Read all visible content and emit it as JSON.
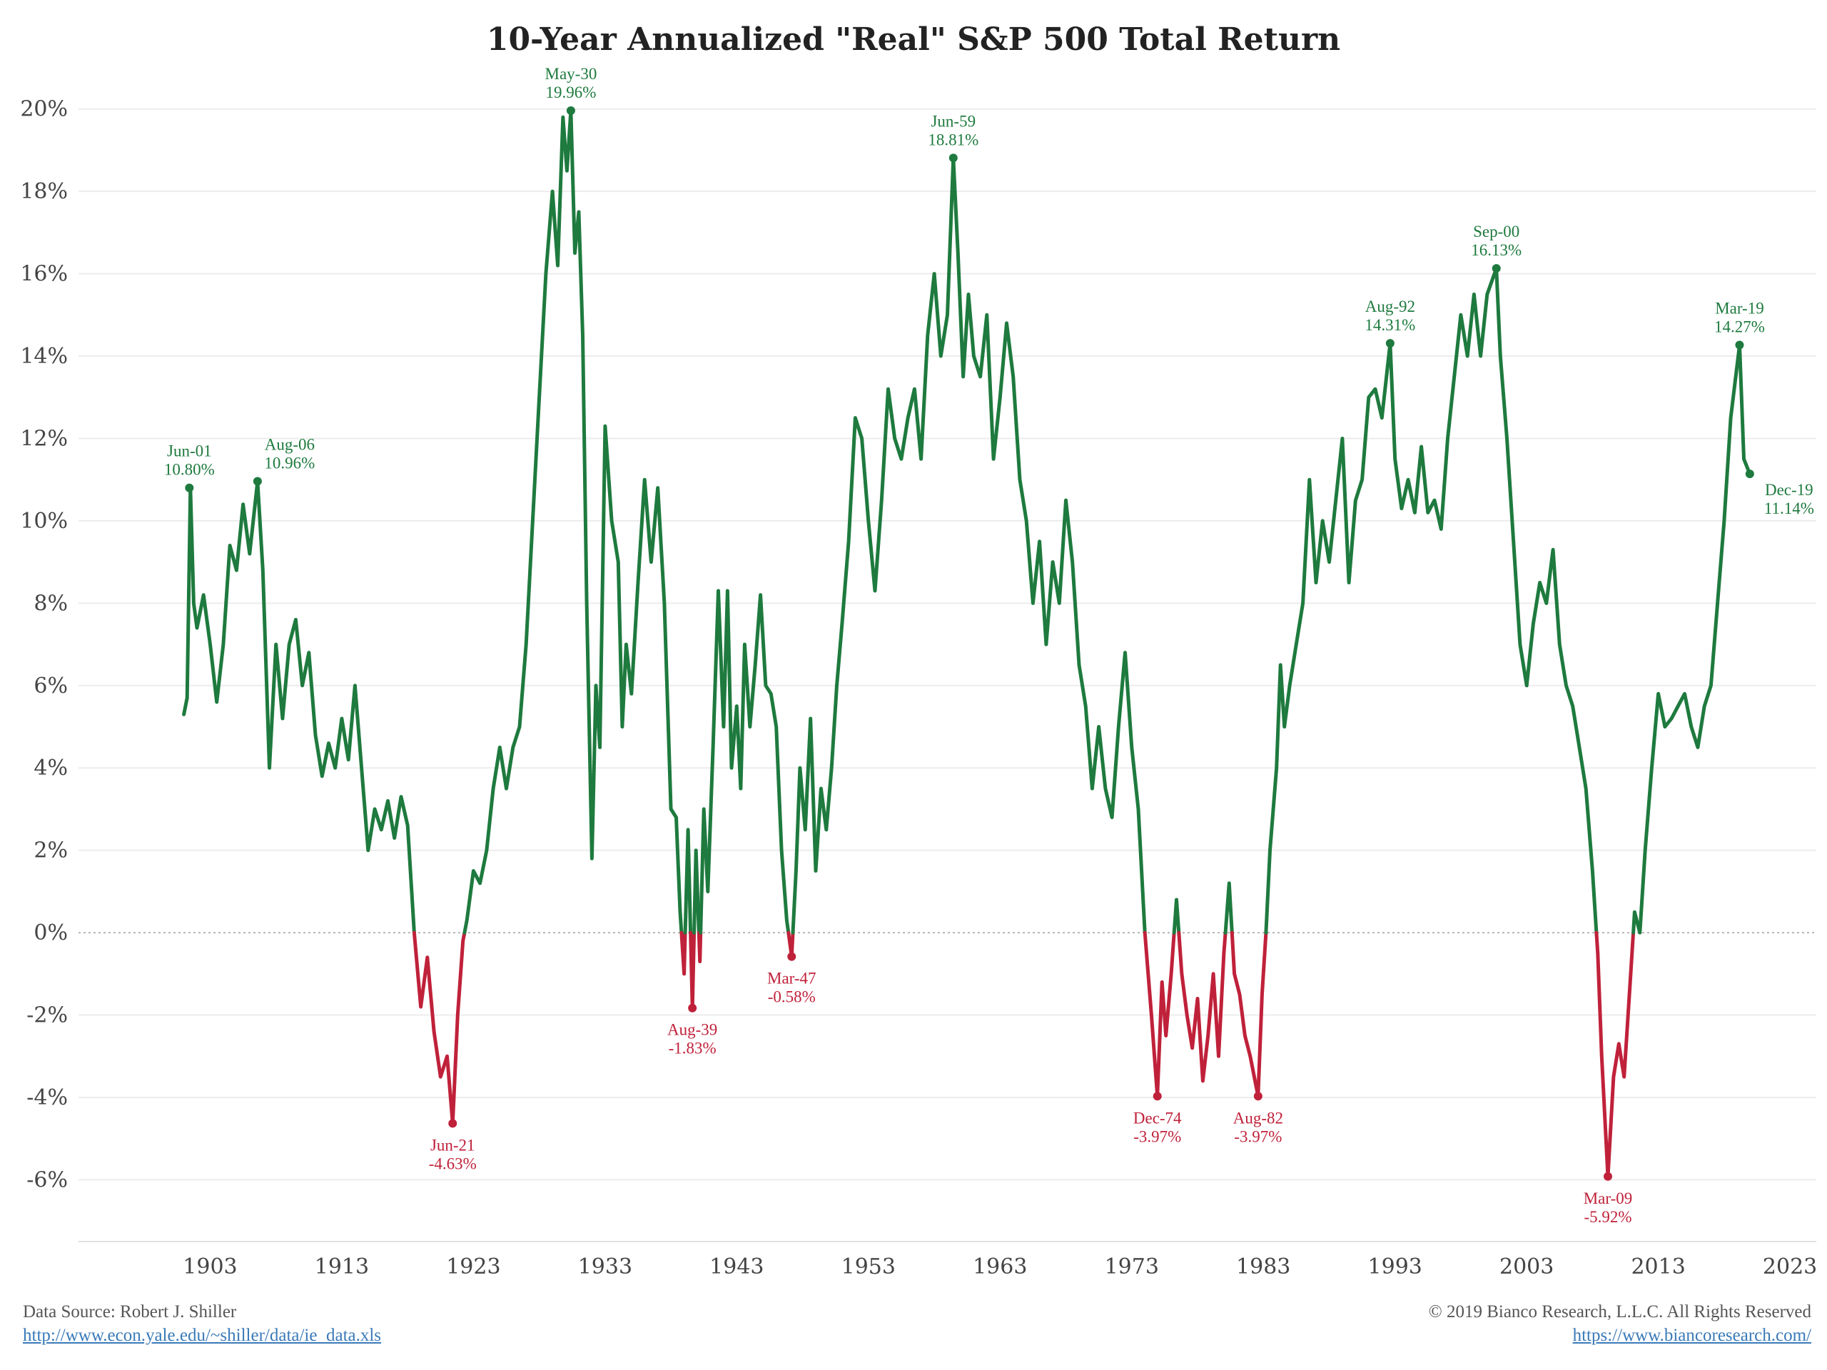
{
  "title": "10-Year Annualized \"Real\" S&P 500 Total Return",
  "footer": {
    "source_label": "Data Source: Robert J. Shiller",
    "source_url": "http://www.econ.yale.edu/~shiller/data/ie_data.xls",
    "copyright": "© 2019 Bianco Research, L.L.C. All Rights Reserved",
    "site_url": "https://www.biancoresearch.com/"
  },
  "colors": {
    "positive": "#1e7a3e",
    "negative": "#c0213a",
    "grid": "#ececec",
    "zero_line": "#b5b5b5"
  },
  "chart_data": {
    "type": "line",
    "title": "10-Year Annualized \"Real\" S&P 500 Total Return",
    "xlabel": "",
    "ylabel": "",
    "x_ticks": [
      "1903",
      "1913",
      "1923",
      "1933",
      "1943",
      "1953",
      "1963",
      "1973",
      "1983",
      "1993",
      "2003",
      "2013",
      "2023"
    ],
    "y_ticks": [
      "20%",
      "18%",
      "16%",
      "14%",
      "12%",
      "10%",
      "8%",
      "6%",
      "4%",
      "2%",
      "0%",
      "-2%",
      "-4%",
      "-6%"
    ],
    "xlim": [
      1893,
      2025
    ],
    "ylim": [
      -7.5,
      21
    ],
    "y_unit": "%",
    "grid": true,
    "coloring": "green above 0%, red below 0%",
    "series": [
      {
        "values": [
          [
            1901.0,
            5.3
          ],
          [
            1901.25,
            5.7
          ],
          [
            1901.5,
            10.8
          ],
          [
            1901.75,
            8.0
          ],
          [
            1902.0,
            7.4
          ],
          [
            1902.5,
            8.2
          ],
          [
            1903.0,
            7.0
          ],
          [
            1903.5,
            5.6
          ],
          [
            1904.0,
            7.0
          ],
          [
            1904.5,
            9.4
          ],
          [
            1905.0,
            8.8
          ],
          [
            1905.5,
            10.4
          ],
          [
            1906.0,
            9.2
          ],
          [
            1906.6,
            10.96
          ],
          [
            1907.0,
            8.8
          ],
          [
            1907.5,
            4.0
          ],
          [
            1908.0,
            7.0
          ],
          [
            1908.5,
            5.2
          ],
          [
            1909.0,
            7.0
          ],
          [
            1909.5,
            7.6
          ],
          [
            1910.0,
            6.0
          ],
          [
            1910.5,
            6.8
          ],
          [
            1911.0,
            4.8
          ],
          [
            1911.5,
            3.8
          ],
          [
            1912.0,
            4.6
          ],
          [
            1912.5,
            4.0
          ],
          [
            1913.0,
            5.2
          ],
          [
            1913.5,
            4.2
          ],
          [
            1914.0,
            6.0
          ],
          [
            1914.5,
            4.0
          ],
          [
            1915.0,
            2.0
          ],
          [
            1915.5,
            3.0
          ],
          [
            1916.0,
            2.5
          ],
          [
            1916.5,
            3.2
          ],
          [
            1917.0,
            2.3
          ],
          [
            1917.5,
            3.3
          ],
          [
            1918.0,
            2.6
          ],
          [
            1918.5,
            0.0
          ],
          [
            1919.0,
            -1.8
          ],
          [
            1919.5,
            -0.6
          ],
          [
            1920.0,
            -2.4
          ],
          [
            1920.5,
            -3.5
          ],
          [
            1921.0,
            -3.0
          ],
          [
            1921.42,
            -4.63
          ],
          [
            1921.8,
            -2.0
          ],
          [
            1922.2,
            -0.2
          ],
          [
            1922.5,
            0.3
          ],
          [
            1923.0,
            1.5
          ],
          [
            1923.5,
            1.2
          ],
          [
            1924.0,
            2.0
          ],
          [
            1924.5,
            3.5
          ],
          [
            1925.0,
            4.5
          ],
          [
            1925.5,
            3.5
          ],
          [
            1926.0,
            4.5
          ],
          [
            1926.5,
            5.0
          ],
          [
            1927.0,
            7.0
          ],
          [
            1927.5,
            10.0
          ],
          [
            1928.0,
            13.0
          ],
          [
            1928.5,
            16.0
          ],
          [
            1929.0,
            18.0
          ],
          [
            1929.4,
            16.2
          ],
          [
            1929.8,
            19.8
          ],
          [
            1930.1,
            18.5
          ],
          [
            1930.4,
            19.96
          ],
          [
            1930.7,
            16.5
          ],
          [
            1931.0,
            17.5
          ],
          [
            1931.3,
            14.5
          ],
          [
            1931.6,
            8.0
          ],
          [
            1932.0,
            1.8
          ],
          [
            1932.3,
            6.0
          ],
          [
            1932.6,
            4.5
          ],
          [
            1933.0,
            12.3
          ],
          [
            1933.5,
            10.0
          ],
          [
            1934.0,
            9.0
          ],
          [
            1934.3,
            5.0
          ],
          [
            1934.6,
            7.0
          ],
          [
            1935.0,
            5.8
          ],
          [
            1935.5,
            8.5
          ],
          [
            1936.0,
            11.0
          ],
          [
            1936.5,
            9.0
          ],
          [
            1937.0,
            10.8
          ],
          [
            1937.5,
            8.0
          ],
          [
            1938.0,
            3.0
          ],
          [
            1938.4,
            2.8
          ],
          [
            1938.7,
            0.5
          ],
          [
            1939.0,
            -1.0
          ],
          [
            1939.3,
            2.5
          ],
          [
            1939.63,
            -1.83
          ],
          [
            1939.9,
            2.0
          ],
          [
            1940.2,
            -0.7
          ],
          [
            1940.5,
            3.0
          ],
          [
            1940.8,
            1.0
          ],
          [
            1941.2,
            4.5
          ],
          [
            1941.6,
            8.3
          ],
          [
            1942.0,
            5.0
          ],
          [
            1942.3,
            8.3
          ],
          [
            1942.6,
            4.0
          ],
          [
            1943.0,
            5.5
          ],
          [
            1943.3,
            3.5
          ],
          [
            1943.6,
            7.0
          ],
          [
            1944.0,
            5.0
          ],
          [
            1944.4,
            6.5
          ],
          [
            1944.8,
            8.2
          ],
          [
            1945.2,
            6.0
          ],
          [
            1945.6,
            5.8
          ],
          [
            1946.0,
            5.0
          ],
          [
            1946.4,
            2.0
          ],
          [
            1946.8,
            0.3
          ],
          [
            1947.17,
            -0.58
          ],
          [
            1947.5,
            1.5
          ],
          [
            1947.8,
            4.0
          ],
          [
            1948.2,
            2.5
          ],
          [
            1948.6,
            5.2
          ],
          [
            1949.0,
            1.5
          ],
          [
            1949.4,
            3.5
          ],
          [
            1949.8,
            2.5
          ],
          [
            1950.2,
            4.0
          ],
          [
            1950.6,
            6.0
          ],
          [
            1951.0,
            7.5
          ],
          [
            1951.5,
            9.5
          ],
          [
            1952.0,
            12.5
          ],
          [
            1952.5,
            12.0
          ],
          [
            1953.0,
            10.0
          ],
          [
            1953.5,
            8.3
          ],
          [
            1954.0,
            10.5
          ],
          [
            1954.5,
            13.2
          ],
          [
            1955.0,
            12.0
          ],
          [
            1955.5,
            11.5
          ],
          [
            1956.0,
            12.5
          ],
          [
            1956.5,
            13.2
          ],
          [
            1957.0,
            11.5
          ],
          [
            1957.5,
            14.5
          ],
          [
            1958.0,
            16.0
          ],
          [
            1958.5,
            14.0
          ],
          [
            1959.0,
            15.0
          ],
          [
            1959.45,
            18.81
          ],
          [
            1959.8,
            16.5
          ],
          [
            1960.2,
            13.5
          ],
          [
            1960.6,
            15.5
          ],
          [
            1961.0,
            14.0
          ],
          [
            1961.5,
            13.5
          ],
          [
            1962.0,
            15.0
          ],
          [
            1962.5,
            11.5
          ],
          [
            1963.0,
            13.0
          ],
          [
            1963.5,
            14.8
          ],
          [
            1964.0,
            13.5
          ],
          [
            1964.5,
            11.0
          ],
          [
            1965.0,
            10.0
          ],
          [
            1965.5,
            8.0
          ],
          [
            1966.0,
            9.5
          ],
          [
            1966.5,
            7.0
          ],
          [
            1967.0,
            9.0
          ],
          [
            1967.5,
            8.0
          ],
          [
            1968.0,
            10.5
          ],
          [
            1968.5,
            9.0
          ],
          [
            1969.0,
            6.5
          ],
          [
            1969.5,
            5.5
          ],
          [
            1970.0,
            3.5
          ],
          [
            1970.5,
            5.0
          ],
          [
            1971.0,
            3.5
          ],
          [
            1971.5,
            2.8
          ],
          [
            1972.0,
            5.0
          ],
          [
            1972.5,
            6.8
          ],
          [
            1973.0,
            4.5
          ],
          [
            1973.5,
            3.0
          ],
          [
            1974.0,
            0.0
          ],
          [
            1974.5,
            -2.0
          ],
          [
            1974.95,
            -3.97
          ],
          [
            1975.3,
            -1.2
          ],
          [
            1975.6,
            -2.5
          ],
          [
            1976.0,
            -1.0
          ],
          [
            1976.4,
            0.8
          ],
          [
            1976.8,
            -1.0
          ],
          [
            1977.2,
            -2.0
          ],
          [
            1977.6,
            -2.8
          ],
          [
            1978.0,
            -1.6
          ],
          [
            1978.4,
            -3.6
          ],
          [
            1978.8,
            -2.5
          ],
          [
            1979.2,
            -1.0
          ],
          [
            1979.6,
            -3.0
          ],
          [
            1980.0,
            -0.5
          ],
          [
            1980.4,
            1.2
          ],
          [
            1980.8,
            -1.0
          ],
          [
            1981.2,
            -1.5
          ],
          [
            1981.6,
            -2.5
          ],
          [
            1982.0,
            -3.0
          ],
          [
            1982.6,
            -3.97
          ],
          [
            1982.9,
            -1.5
          ],
          [
            1983.2,
            0.0
          ],
          [
            1983.5,
            2.0
          ],
          [
            1984.0,
            4.0
          ],
          [
            1984.3,
            6.5
          ],
          [
            1984.6,
            5.0
          ],
          [
            1985.0,
            6.0
          ],
          [
            1985.5,
            7.0
          ],
          [
            1986.0,
            8.0
          ],
          [
            1986.5,
            11.0
          ],
          [
            1987.0,
            8.5
          ],
          [
            1987.5,
            10.0
          ],
          [
            1988.0,
            9.0
          ],
          [
            1988.5,
            10.5
          ],
          [
            1989.0,
            12.0
          ],
          [
            1989.5,
            8.5
          ],
          [
            1990.0,
            10.5
          ],
          [
            1990.5,
            11.0
          ],
          [
            1991.0,
            13.0
          ],
          [
            1991.5,
            13.2
          ],
          [
            1992.0,
            12.5
          ],
          [
            1992.63,
            14.31
          ],
          [
            1993.0,
            11.5
          ],
          [
            1993.5,
            10.3
          ],
          [
            1994.0,
            11.0
          ],
          [
            1994.5,
            10.2
          ],
          [
            1995.0,
            11.8
          ],
          [
            1995.5,
            10.2
          ],
          [
            1996.0,
            10.5
          ],
          [
            1996.5,
            9.8
          ],
          [
            1997.0,
            12.0
          ],
          [
            1997.5,
            13.5
          ],
          [
            1998.0,
            15.0
          ],
          [
            1998.5,
            14.0
          ],
          [
            1999.0,
            15.5
          ],
          [
            1999.5,
            14.0
          ],
          [
            2000.0,
            15.5
          ],
          [
            2000.7,
            16.13
          ],
          [
            2001.0,
            14.0
          ],
          [
            2001.5,
            12.0
          ],
          [
            2002.0,
            9.5
          ],
          [
            2002.5,
            7.0
          ],
          [
            2003.0,
            6.0
          ],
          [
            2003.5,
            7.5
          ],
          [
            2004.0,
            8.5
          ],
          [
            2004.5,
            8.0
          ],
          [
            2005.0,
            9.3
          ],
          [
            2005.5,
            7.0
          ],
          [
            2006.0,
            6.0
          ],
          [
            2006.5,
            5.5
          ],
          [
            2007.0,
            4.5
          ],
          [
            2007.5,
            3.5
          ],
          [
            2008.0,
            1.5
          ],
          [
            2008.4,
            -0.5
          ],
          [
            2008.7,
            -3.0
          ],
          [
            2009.17,
            -5.92
          ],
          [
            2009.6,
            -3.5
          ],
          [
            2010.0,
            -2.7
          ],
          [
            2010.4,
            -3.5
          ],
          [
            2010.8,
            -1.5
          ],
          [
            2011.2,
            0.5
          ],
          [
            2011.6,
            0.0
          ],
          [
            2012.0,
            2.0
          ],
          [
            2012.5,
            4.0
          ],
          [
            2013.0,
            5.8
          ],
          [
            2013.5,
            5.0
          ],
          [
            2014.0,
            5.2
          ],
          [
            2014.5,
            5.5
          ],
          [
            2015.0,
            5.8
          ],
          [
            2015.5,
            5.0
          ],
          [
            2016.0,
            4.5
          ],
          [
            2016.5,
            5.5
          ],
          [
            2017.0,
            6.0
          ],
          [
            2017.5,
            8.0
          ],
          [
            2018.0,
            10.0
          ],
          [
            2018.5,
            12.5
          ],
          [
            2019.17,
            14.27
          ],
          [
            2019.5,
            11.5
          ],
          [
            2019.95,
            11.14
          ]
        ]
      }
    ],
    "annotations": [
      {
        "x": 1901.42,
        "y": 10.8,
        "date": "Jun-01",
        "value": "10.80%",
        "color": "green",
        "anchor": "left"
      },
      {
        "x": 1906.6,
        "y": 10.96,
        "date": "Aug-06",
        "value": "10.96%",
        "color": "green",
        "anchor": "right"
      },
      {
        "x": 1930.4,
        "y": 19.96,
        "date": "May-30",
        "value": "19.96%",
        "color": "green",
        "anchor": "top"
      },
      {
        "x": 1959.45,
        "y": 18.81,
        "date": "Jun-59",
        "value": "18.81%",
        "color": "green",
        "anchor": "top"
      },
      {
        "x": 1992.63,
        "y": 14.31,
        "date": "Aug-92",
        "value": "14.31%",
        "color": "green",
        "anchor": "top"
      },
      {
        "x": 2000.7,
        "y": 16.13,
        "date": "Sep-00",
        "value": "16.13%",
        "color": "green",
        "anchor": "top"
      },
      {
        "x": 2019.17,
        "y": 14.27,
        "date": "Mar-19",
        "value": "14.27%",
        "color": "green",
        "anchor": "top"
      },
      {
        "x": 2019.95,
        "y": 11.14,
        "date": "Dec-19",
        "value": "11.14%",
        "color": "green",
        "anchor": "right"
      },
      {
        "x": 1921.42,
        "y": -4.63,
        "date": "Jun-21",
        "value": "-4.63%",
        "color": "red",
        "anchor": "bottom"
      },
      {
        "x": 1939.63,
        "y": -1.83,
        "date": "Aug-39",
        "value": "-1.83%",
        "color": "red",
        "anchor": "bottom"
      },
      {
        "x": 1947.17,
        "y": -0.58,
        "date": "Mar-47",
        "value": "-0.58%",
        "color": "red",
        "anchor": "bottom"
      },
      {
        "x": 1974.95,
        "y": -3.97,
        "date": "Dec-74",
        "value": "-3.97%",
        "color": "red",
        "anchor": "bottom"
      },
      {
        "x": 1982.6,
        "y": -3.97,
        "date": "Aug-82",
        "value": "-3.97%",
        "color": "red",
        "anchor": "bottom"
      },
      {
        "x": 2009.17,
        "y": -5.92,
        "date": "Mar-09",
        "value": "-5.92%",
        "color": "red",
        "anchor": "bottom"
      }
    ]
  }
}
